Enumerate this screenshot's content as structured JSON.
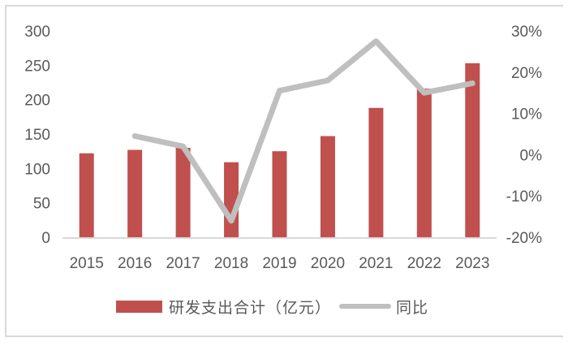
{
  "chart_data": {
    "type": "bar+line",
    "title": "",
    "categories": [
      "2015",
      "2016",
      "2017",
      "2018",
      "2019",
      "2020",
      "2021",
      "2022",
      "2023"
    ],
    "series": [
      {
        "name": "研发支出合计（亿元）",
        "type": "bar",
        "axis": "left",
        "color": "#c0504d",
        "values": [
          122,
          127,
          130,
          109,
          125,
          147,
          188,
          216,
          253
        ]
      },
      {
        "name": "同比",
        "type": "line",
        "axis": "right",
        "color": "#bfbfbf",
        "values": [
          null,
          4.5,
          2.0,
          -16.0,
          15.5,
          18.0,
          27.5,
          15.0,
          17.3
        ],
        "unit": "%"
      }
    ],
    "left_axis": {
      "ylim": [
        0,
        300
      ],
      "ticks": [
        0,
        50,
        100,
        150,
        200,
        250,
        300
      ]
    },
    "right_axis": {
      "ylim": [
        -20,
        30
      ],
      "ticks": [
        "-20%",
        "-10%",
        "0%",
        "10%",
        "20%",
        "30%"
      ]
    },
    "xlabel": "",
    "ylabel": "",
    "grid": false,
    "legend_position": "bottom"
  },
  "legend": {
    "bar_label": "研发支出合计（亿元）",
    "line_label": "同比"
  }
}
